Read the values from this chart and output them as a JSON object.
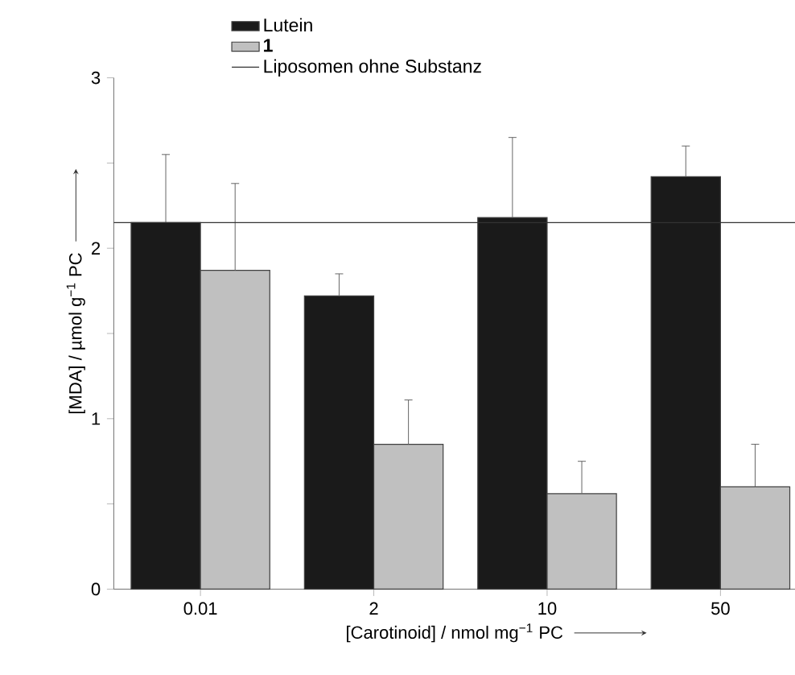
{
  "chart_data": {
    "type": "bar",
    "xlabel": "[Carotinoid] / nmol mg$^{−1}$ PC",
    "ylabel": "[MDA] / µmol g$^{−1}$ PC",
    "categories": [
      "0.01",
      "2",
      "10",
      "50"
    ],
    "series": [
      {
        "name": "Lutein",
        "color": "#1a1a1a",
        "values": [
          2.15,
          1.72,
          2.18,
          2.42
        ],
        "errors": [
          [
            2.15,
            2.55
          ],
          [
            1.72,
            1.85
          ],
          [
            2.18,
            2.65
          ],
          [
            2.42,
            2.6
          ]
        ]
      },
      {
        "name": "1",
        "color": "#c0c0c0",
        "values": [
          1.87,
          0.85,
          0.56,
          0.6
        ],
        "errors": [
          [
            1.87,
            2.38
          ],
          [
            0.85,
            1.11
          ],
          [
            0.56,
            0.75
          ],
          [
            0.6,
            0.85
          ]
        ]
      }
    ],
    "ylim": [
      0,
      3
    ],
    "yticks": [
      0,
      {
        "value": 0.5,
        "label": null
      },
      1,
      {
        "value": 1.5,
        "label": null
      },
      2,
      {
        "value": 2.5,
        "label": null
      },
      3
    ],
    "ref_lines": [
      {
        "axis": "y",
        "value": 2.15,
        "label": "Liposomen ohne Substanz",
        "color": "#333333"
      }
    ],
    "legend": "top",
    "grid": false
  }
}
